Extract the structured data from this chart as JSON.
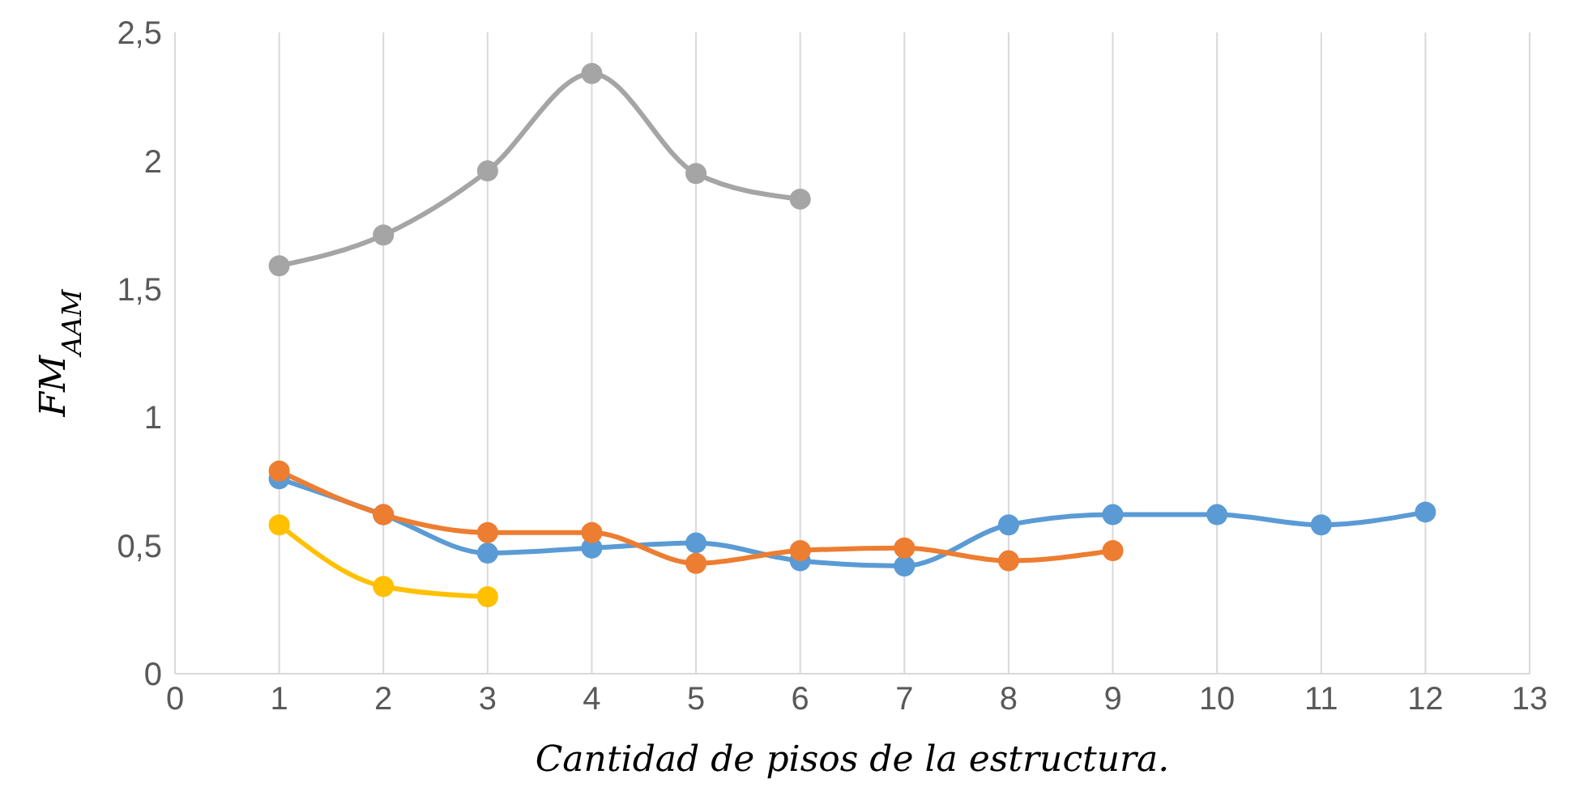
{
  "chart_data": {
    "type": "line",
    "xlabel": "Cantidad de pisos de la estructura.",
    "ylabel": "FM$_{AAM}$",
    "x": [
      1,
      2,
      3,
      4,
      5,
      6,
      7,
      8,
      9,
      10,
      11,
      12
    ],
    "series": [
      {
        "color": "#a5a5a5",
        "values": [
          1.59,
          1.71,
          1.96,
          2.34,
          1.95,
          1.85,
          null,
          null,
          null,
          null,
          null,
          null
        ]
      },
      {
        "color": "#5b9bd5",
        "values": [
          0.76,
          0.62,
          0.47,
          0.49,
          0.51,
          0.44,
          0.42,
          0.58,
          0.62,
          0.62,
          0.58,
          0.63
        ]
      },
      {
        "color": "#ed7d31",
        "values": [
          0.79,
          0.62,
          0.55,
          0.55,
          0.43,
          0.48,
          0.49,
          0.44,
          0.48,
          null,
          null,
          null
        ]
      },
      {
        "color": "#ffc000",
        "values": [
          0.58,
          0.34,
          0.3,
          null,
          null,
          null,
          null,
          null,
          null,
          null,
          null,
          null
        ]
      }
    ],
    "xlim": [
      0,
      13
    ],
    "xticks": [
      0,
      1,
      2,
      3,
      4,
      5,
      6,
      7,
      8,
      9,
      10,
      11,
      12,
      13
    ],
    "ylim": [
      0,
      2.5
    ],
    "yticks": [
      0,
      {
        "value": 0.5,
        "label": "0,5"
      },
      1,
      {
        "value": 1.5,
        "label": "1,5"
      },
      2,
      {
        "value": 2.5,
        "label": "2,5"
      }
    ],
    "grid": "x",
    "marker": "circle",
    "line_style": "solid",
    "legend": false
  }
}
